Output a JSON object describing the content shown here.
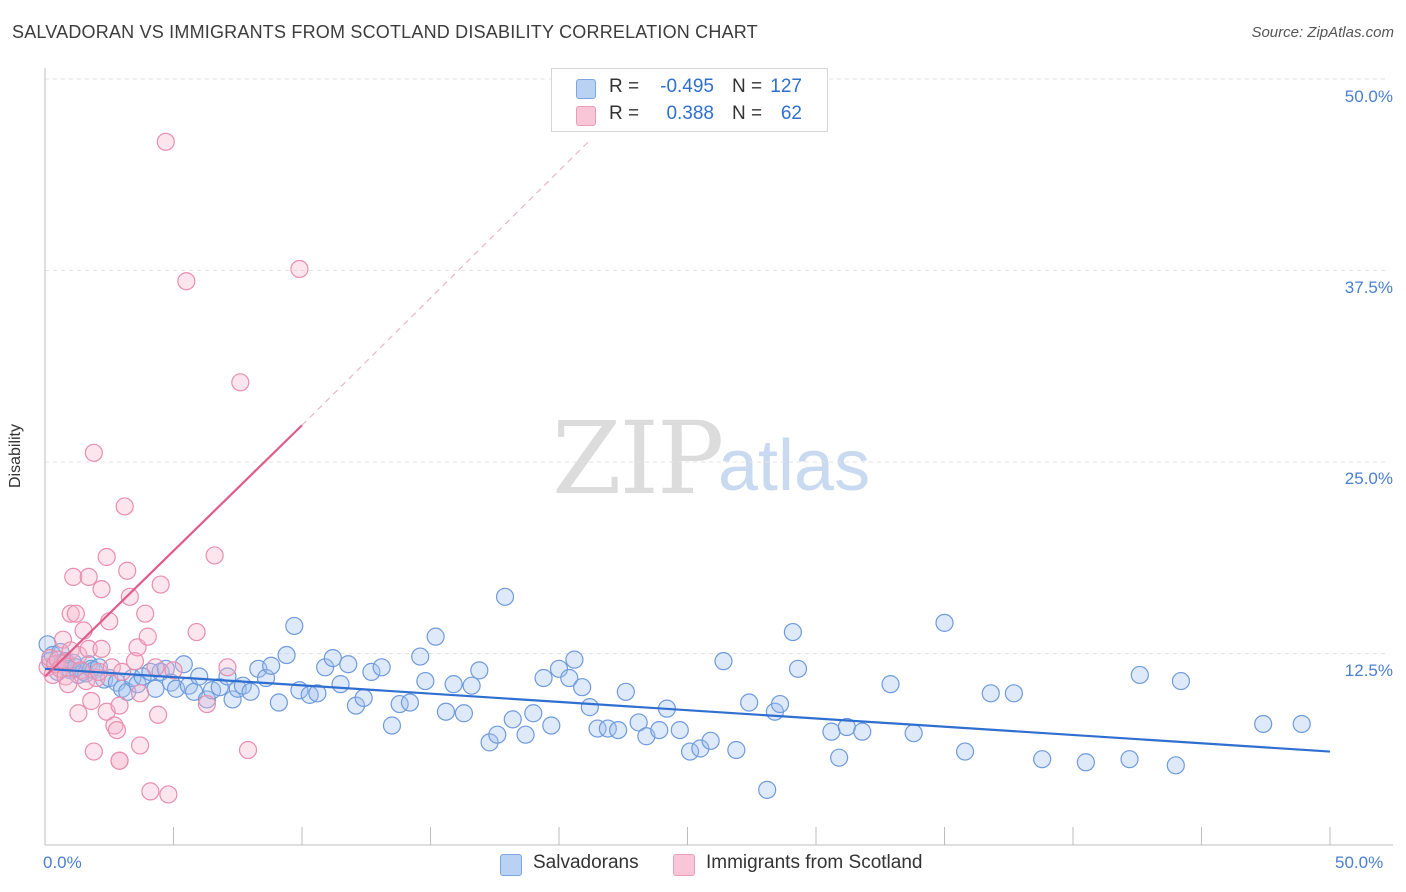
{
  "header": {
    "title": "SALVADORAN VS IMMIGRANTS FROM SCOTLAND DISABILITY CORRELATION CHART",
    "source": "Source: ZipAtlas.com"
  },
  "watermark": {
    "zip": "ZIP",
    "atlas": "atlas"
  },
  "colors": {
    "blue": "#5b8fd9",
    "blue_line": "#2f6fd0",
    "pink": "#e77fa2",
    "pink_line": "#e05c8a"
  },
  "legend": {
    "rows": [
      {
        "r_label": "R =",
        "r_value": "-0.495",
        "n_label": "N =",
        "n_value": "127"
      },
      {
        "r_label": "R =",
        "r_value": "0.388",
        "n_label": "N =",
        "n_value": "62"
      }
    ]
  },
  "bottom_legend": {
    "series1": "Salvadorans",
    "series2": "Immigrants from Scotland"
  },
  "chart_data": {
    "type": "scatter",
    "title": "SALVADORAN VS IMMIGRANTS FROM SCOTLAND DISABILITY CORRELATION CHART",
    "xlabel": "",
    "ylabel": "Disability",
    "xlim": [
      0,
      50
    ],
    "ylim": [
      0,
      50
    ],
    "x_tick_labels": [
      "0.0%",
      "50.0%"
    ],
    "y_ticks": [
      12.5,
      25.0,
      37.5,
      50.0
    ],
    "y_tick_labels": [
      "12.5%",
      "25.0%",
      "37.5%",
      "50.0%"
    ],
    "series": [
      {
        "name": "Salvadorans",
        "trend": {
          "x": [
            0,
            50
          ],
          "y": [
            11.5,
            6.1
          ]
        },
        "points": [
          [
            0.1,
            13.1
          ],
          [
            0.2,
            12.0
          ],
          [
            0.3,
            12.4
          ],
          [
            0.4,
            11.8
          ],
          [
            0.5,
            11.3
          ],
          [
            0.6,
            12.6
          ],
          [
            0.7,
            11.9
          ],
          [
            0.8,
            12.0
          ],
          [
            0.9,
            11.5
          ],
          [
            1.0,
            11.4
          ],
          [
            1.1,
            11.9
          ],
          [
            1.2,
            11.6
          ],
          [
            1.3,
            11.1
          ],
          [
            1.5,
            11.3
          ],
          [
            1.6,
            11.2
          ],
          [
            1.7,
            11.8
          ],
          [
            1.8,
            11.5
          ],
          [
            1.9,
            11.4
          ],
          [
            2.1,
            11.6
          ],
          [
            2.3,
            10.8
          ],
          [
            2.5,
            10.9
          ],
          [
            2.8,
            10.6
          ],
          [
            3.0,
            10.2
          ],
          [
            3.2,
            10.0
          ],
          [
            3.4,
            10.9
          ],
          [
            3.6,
            10.5
          ],
          [
            3.8,
            11.0
          ],
          [
            4.1,
            11.3
          ],
          [
            4.3,
            10.2
          ],
          [
            4.5,
            11.3
          ],
          [
            4.7,
            11.5
          ],
          [
            4.9,
            10.6
          ],
          [
            5.1,
            10.2
          ],
          [
            5.4,
            11.8
          ],
          [
            5.6,
            10.4
          ],
          [
            5.8,
            10.0
          ],
          [
            6.0,
            11.0
          ],
          [
            6.3,
            9.5
          ],
          [
            6.5,
            10.1
          ],
          [
            6.8,
            10.3
          ],
          [
            7.1,
            11.0
          ],
          [
            7.3,
            9.5
          ],
          [
            7.5,
            10.2
          ],
          [
            7.7,
            10.4
          ],
          [
            8.0,
            10.0
          ],
          [
            8.3,
            11.5
          ],
          [
            8.6,
            10.9
          ],
          [
            8.8,
            11.7
          ],
          [
            9.1,
            9.3
          ],
          [
            9.4,
            12.4
          ],
          [
            9.7,
            14.3
          ],
          [
            9.9,
            10.1
          ],
          [
            10.3,
            9.8
          ],
          [
            10.6,
            9.9
          ],
          [
            10.9,
            11.6
          ],
          [
            11.2,
            12.2
          ],
          [
            11.5,
            10.5
          ],
          [
            11.8,
            11.8
          ],
          [
            12.1,
            9.1
          ],
          [
            12.4,
            9.6
          ],
          [
            12.7,
            11.3
          ],
          [
            13.1,
            11.6
          ],
          [
            13.5,
            7.8
          ],
          [
            13.8,
            9.2
          ],
          [
            14.2,
            9.3
          ],
          [
            14.6,
            12.3
          ],
          [
            14.8,
            10.7
          ],
          [
            15.2,
            13.6
          ],
          [
            15.6,
            8.7
          ],
          [
            15.9,
            10.5
          ],
          [
            16.3,
            8.6
          ],
          [
            16.6,
            10.4
          ],
          [
            16.9,
            11.4
          ],
          [
            17.3,
            6.7
          ],
          [
            17.6,
            7.2
          ],
          [
            17.9,
            16.2
          ],
          [
            18.2,
            8.2
          ],
          [
            18.7,
            7.2
          ],
          [
            19.0,
            8.6
          ],
          [
            19.4,
            10.9
          ],
          [
            19.7,
            7.8
          ],
          [
            20.0,
            11.5
          ],
          [
            20.4,
            10.9
          ],
          [
            20.6,
            12.1
          ],
          [
            20.9,
            10.3
          ],
          [
            21.2,
            9.0
          ],
          [
            21.5,
            7.6
          ],
          [
            21.9,
            7.6
          ],
          [
            22.3,
            7.5
          ],
          [
            22.6,
            10.0
          ],
          [
            23.1,
            8.0
          ],
          [
            23.4,
            7.1
          ],
          [
            23.9,
            7.5
          ],
          [
            24.2,
            8.9
          ],
          [
            24.7,
            7.5
          ],
          [
            25.1,
            6.1
          ],
          [
            25.5,
            6.3
          ],
          [
            25.9,
            6.8
          ],
          [
            26.4,
            12.0
          ],
          [
            26.9,
            6.2
          ],
          [
            27.4,
            9.3
          ],
          [
            28.1,
            3.6
          ],
          [
            28.4,
            8.7
          ],
          [
            28.6,
            9.2
          ],
          [
            29.1,
            13.9
          ],
          [
            29.3,
            11.5
          ],
          [
            30.6,
            7.4
          ],
          [
            30.9,
            5.7
          ],
          [
            31.2,
            7.7
          ],
          [
            31.8,
            7.4
          ],
          [
            32.9,
            10.5
          ],
          [
            33.8,
            7.3
          ],
          [
            35.0,
            14.5
          ],
          [
            35.8,
            6.1
          ],
          [
            36.8,
            9.9
          ],
          [
            37.7,
            9.9
          ],
          [
            38.8,
            5.6
          ],
          [
            40.5,
            5.4
          ],
          [
            42.2,
            5.6
          ],
          [
            42.6,
            11.1
          ],
          [
            44.0,
            5.2
          ],
          [
            44.2,
            10.7
          ],
          [
            47.4,
            7.9
          ],
          [
            48.9,
            7.9
          ]
        ]
      },
      {
        "name": "Immigrants from Scotland",
        "trend": {
          "x": [
            0,
            10
          ],
          "y": [
            11.0,
            27.4
          ]
        },
        "trend_extension": {
          "x": [
            10,
            21.2
          ],
          "y": [
            27.4,
            46.0
          ]
        },
        "points": [
          [
            0.1,
            11.6
          ],
          [
            0.2,
            12.2
          ],
          [
            0.3,
            11.1
          ],
          [
            0.4,
            11.8
          ],
          [
            0.5,
            12.1
          ],
          [
            0.6,
            11.5
          ],
          [
            0.7,
            13.4
          ],
          [
            0.8,
            11.9
          ],
          [
            0.8,
            11.0
          ],
          [
            0.9,
            10.5
          ],
          [
            1.0,
            12.7
          ],
          [
            1.0,
            15.1
          ],
          [
            1.1,
            17.5
          ],
          [
            1.2,
            15.1
          ],
          [
            1.3,
            8.6
          ],
          [
            1.3,
            12.4
          ],
          [
            1.4,
            11.4
          ],
          [
            1.5,
            14.0
          ],
          [
            1.6,
            10.7
          ],
          [
            1.7,
            17.5
          ],
          [
            1.7,
            12.8
          ],
          [
            1.8,
            9.4
          ],
          [
            1.9,
            25.6
          ],
          [
            1.9,
            6.1
          ],
          [
            2.0,
            10.9
          ],
          [
            2.1,
            11.3
          ],
          [
            2.2,
            16.7
          ],
          [
            2.2,
            12.8
          ],
          [
            2.4,
            18.8
          ],
          [
            2.4,
            8.7
          ],
          [
            2.5,
            14.6
          ],
          [
            2.6,
            11.6
          ],
          [
            2.7,
            7.8
          ],
          [
            2.8,
            7.5
          ],
          [
            2.9,
            5.5
          ],
          [
            2.9,
            9.1
          ],
          [
            2.9,
            5.5
          ],
          [
            3.0,
            11.3
          ],
          [
            3.1,
            22.1
          ],
          [
            3.2,
            17.9
          ],
          [
            3.3,
            16.2
          ],
          [
            3.5,
            12.0
          ],
          [
            3.6,
            12.9
          ],
          [
            3.7,
            9.9
          ],
          [
            3.7,
            6.5
          ],
          [
            3.9,
            15.1
          ],
          [
            4.0,
            13.6
          ],
          [
            4.1,
            3.5
          ],
          [
            4.3,
            11.6
          ],
          [
            4.4,
            8.5
          ],
          [
            4.5,
            17.0
          ],
          [
            4.8,
            3.3
          ],
          [
            4.7,
            45.9
          ],
          [
            5.0,
            11.4
          ],
          [
            5.5,
            36.8
          ],
          [
            5.9,
            13.9
          ],
          [
            6.3,
            9.2
          ],
          [
            6.6,
            18.9
          ],
          [
            7.1,
            11.6
          ],
          [
            7.6,
            30.2
          ],
          [
            7.9,
            6.2
          ],
          [
            9.9,
            37.6
          ]
        ]
      }
    ]
  }
}
